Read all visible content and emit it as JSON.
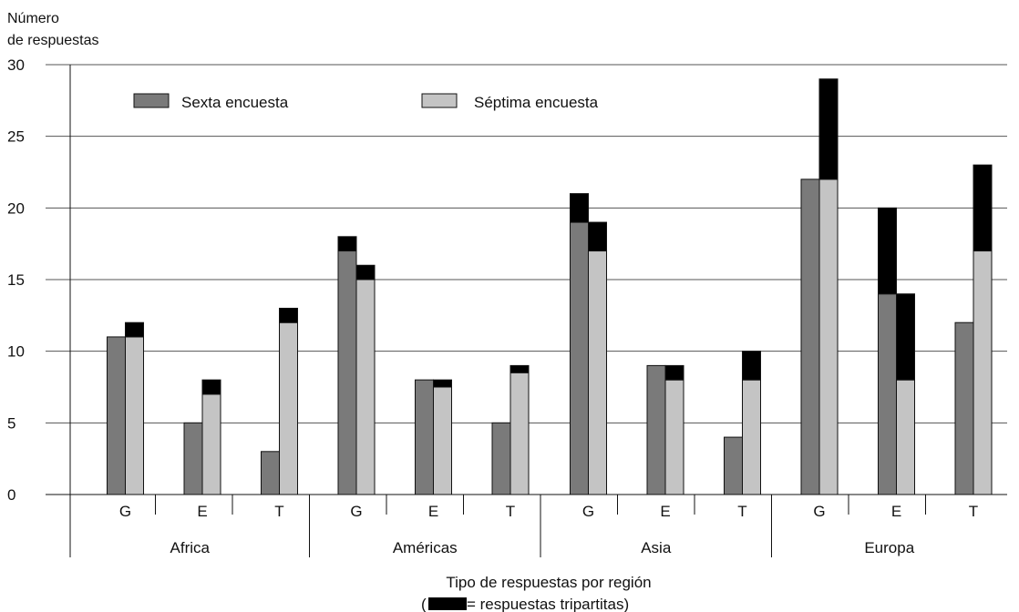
{
  "chart_data": {
    "type": "bar",
    "ylabel_lines": [
      "Número",
      "de respuestas"
    ],
    "xlabel": "Tipo de respuestas por región",
    "xlabel_note": {
      "open": "(",
      "text": " = respuestas tripartitas)"
    },
    "ylim": [
      0,
      30
    ],
    "yticks": [
      "0",
      "5",
      "10",
      "15",
      "20",
      "25",
      "30"
    ],
    "grid": true,
    "legend_position": "top-left",
    "regions": [
      "Africa",
      "Américas",
      "Asia",
      "Europa"
    ],
    "categories": [
      "G",
      "E",
      "T",
      "G",
      "E",
      "T",
      "G",
      "E",
      "T",
      "G",
      "E",
      "T"
    ],
    "series": [
      {
        "name": "Sexta encuesta",
        "color": "#7a7a7a",
        "values": [
          11,
          5,
          3,
          17,
          8,
          5,
          19,
          9,
          4,
          22,
          14,
          12
        ]
      },
      {
        "name": "Séptima encuesta",
        "color": "#c4c4c4",
        "values": [
          11,
          7,
          12,
          15,
          7.5,
          8.5,
          17,
          8,
          8,
          22,
          8,
          17
        ]
      }
    ],
    "tripartite": {
      "color": "#000000",
      "values": [
        0,
        0,
        0,
        1,
        0,
        0,
        2,
        0,
        0,
        0,
        6,
        0
      ]
    },
    "seventh_tripartite_stack": {
      "color": "#000000",
      "values": [
        1,
        1,
        1,
        1,
        0.5,
        0.5,
        2,
        1,
        2,
        7,
        6,
        6
      ]
    }
  }
}
